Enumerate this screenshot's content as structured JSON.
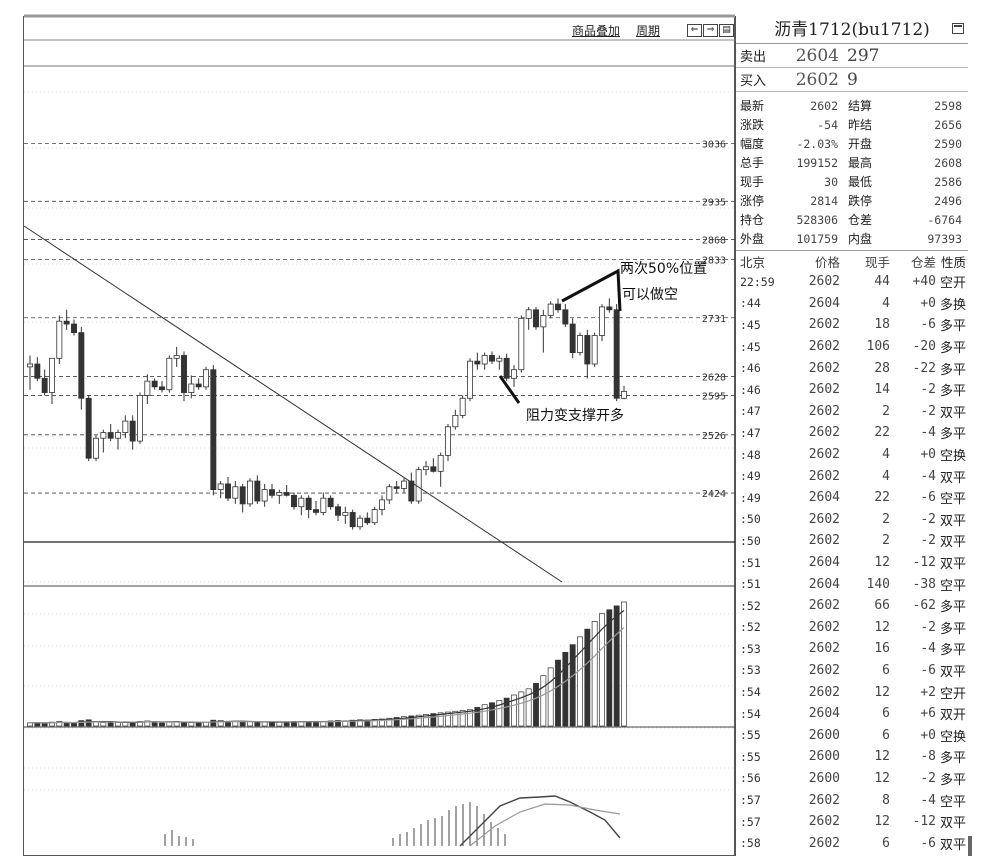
{
  "toolbar": {
    "overlay_label": "商品叠加",
    "period_label": "周期",
    "buttons": [
      "zoom-in-icon",
      "zoom-out-icon",
      "layout-icon"
    ]
  },
  "annotations": {
    "retrace_text_1": "两次50%位置",
    "retrace_text_2": "可以做空",
    "support_text": "阻力变支撑开多"
  },
  "price_levels": [
    {
      "label": "3036",
      "value": 3036
    },
    {
      "label": "2935",
      "value": 2935
    },
    {
      "label": "2868",
      "value": 2868
    },
    {
      "label": "2833",
      "value": 2833
    },
    {
      "label": "2731",
      "value": 2731
    },
    {
      "label": "2628",
      "value": 2628
    },
    {
      "label": "2595",
      "value": 2595
    },
    {
      "label": "2526",
      "value": 2526
    },
    {
      "label": "2424",
      "value": 2424
    }
  ],
  "quote": {
    "title": "沥青1712(bu1712)",
    "ask_label": "卖出",
    "ask_price": "2604",
    "ask_vol": "297",
    "bid_label": "买入",
    "bid_price": "2602",
    "bid_vol": "9",
    "stats": [
      {
        "l1": "最新",
        "v1": "2602",
        "l2": "结算",
        "v2": "2598"
      },
      {
        "l1": "涨跌",
        "v1": "-54",
        "l2": "昨结",
        "v2": "2656"
      },
      {
        "l1": "幅度",
        "v1": "-2.03%",
        "l2": "开盘",
        "v2": "2590"
      },
      {
        "l1": "总手",
        "v1": "199152",
        "l2": "最高",
        "v2": "2608"
      },
      {
        "l1": "现手",
        "v1": "30",
        "l2": "最低",
        "v2": "2586"
      },
      {
        "l1": "涨停",
        "v1": "2814",
        "l2": "跌停",
        "v2": "2496"
      },
      {
        "l1": "持仓",
        "v1": "528306",
        "l2": "仓差",
        "v2": "-6764"
      },
      {
        "l1": "外盘",
        "v1": "101759",
        "l2": "内盘",
        "v2": "97393"
      }
    ]
  },
  "ticks": {
    "header": {
      "time": "北京",
      "price": "价格",
      "vol": "现手",
      "oi": "仓差",
      "nature": "性质"
    },
    "rows": [
      {
        "t": "22:59",
        "p": "2602",
        "v": "44",
        "oi": "+40",
        "n": "空开"
      },
      {
        "t": ":44",
        "p": "2604",
        "v": "4",
        "oi": "+0",
        "n": "多换"
      },
      {
        "t": ":45",
        "p": "2602",
        "v": "18",
        "oi": "-6",
        "n": "多平"
      },
      {
        "t": ":45",
        "p": "2602",
        "v": "106",
        "oi": "-20",
        "n": "多平"
      },
      {
        "t": ":46",
        "p": "2602",
        "v": "28",
        "oi": "-22",
        "n": "多平"
      },
      {
        "t": ":46",
        "p": "2602",
        "v": "14",
        "oi": "-2",
        "n": "多平"
      },
      {
        "t": ":47",
        "p": "2602",
        "v": "2",
        "oi": "-2",
        "n": "双平"
      },
      {
        "t": ":47",
        "p": "2602",
        "v": "22",
        "oi": "-4",
        "n": "多平"
      },
      {
        "t": ":48",
        "p": "2602",
        "v": "4",
        "oi": "+0",
        "n": "空换"
      },
      {
        "t": ":49",
        "p": "2602",
        "v": "4",
        "oi": "-4",
        "n": "双平"
      },
      {
        "t": ":49",
        "p": "2604",
        "v": "22",
        "oi": "-6",
        "n": "空平"
      },
      {
        "t": ":50",
        "p": "2602",
        "v": "2",
        "oi": "-2",
        "n": "双平"
      },
      {
        "t": ":50",
        "p": "2602",
        "v": "2",
        "oi": "-2",
        "n": "双平"
      },
      {
        "t": ":51",
        "p": "2604",
        "v": "12",
        "oi": "-12",
        "n": "双平"
      },
      {
        "t": ":51",
        "p": "2604",
        "v": "140",
        "oi": "-38",
        "n": "空平"
      },
      {
        "t": ":52",
        "p": "2602",
        "v": "66",
        "oi": "-62",
        "n": "多平"
      },
      {
        "t": ":52",
        "p": "2602",
        "v": "12",
        "oi": "-2",
        "n": "多平"
      },
      {
        "t": ":53",
        "p": "2602",
        "v": "16",
        "oi": "-4",
        "n": "多平"
      },
      {
        "t": ":53",
        "p": "2602",
        "v": "6",
        "oi": "-6",
        "n": "双平"
      },
      {
        "t": ":54",
        "p": "2602",
        "v": "12",
        "oi": "+2",
        "n": "空开"
      },
      {
        "t": ":54",
        "p": "2604",
        "v": "6",
        "oi": "+6",
        "n": "双开"
      },
      {
        "t": ":55",
        "p": "2600",
        "v": "6",
        "oi": "+0",
        "n": "空换"
      },
      {
        "t": ":55",
        "p": "2600",
        "v": "12",
        "oi": "-8",
        "n": "多平"
      },
      {
        "t": ":56",
        "p": "2600",
        "v": "12",
        "oi": "-2",
        "n": "多平"
      },
      {
        "t": ":57",
        "p": "2602",
        "v": "8",
        "oi": "-4",
        "n": "空平"
      },
      {
        "t": ":57",
        "p": "2602",
        "v": "12",
        "oi": "-12",
        "n": "双平"
      },
      {
        "t": ":58",
        "p": "2602",
        "v": "6",
        "oi": "-6",
        "n": "双平"
      }
    ]
  },
  "chart_data": {
    "type": "candlestick",
    "candles": [
      {
        "o": 2645,
        "h": 2665,
        "l": 2605,
        "c": 2650
      },
      {
        "o": 2650,
        "h": 2662,
        "l": 2620,
        "c": 2625
      },
      {
        "o": 2625,
        "h": 2640,
        "l": 2595,
        "c": 2600
      },
      {
        "o": 2600,
        "h": 2660,
        "l": 2580,
        "c": 2660
      },
      {
        "o": 2660,
        "h": 2735,
        "l": 2650,
        "c": 2725
      },
      {
        "o": 2725,
        "h": 2745,
        "l": 2710,
        "c": 2720
      },
      {
        "o": 2720,
        "h": 2728,
        "l": 2700,
        "c": 2705
      },
      {
        "o": 2705,
        "h": 2715,
        "l": 2570,
        "c": 2590
      },
      {
        "o": 2590,
        "h": 2595,
        "l": 2480,
        "c": 2485
      },
      {
        "o": 2485,
        "h": 2525,
        "l": 2480,
        "c": 2520
      },
      {
        "o": 2520,
        "h": 2535,
        "l": 2495,
        "c": 2530
      },
      {
        "o": 2530,
        "h": 2545,
        "l": 2515,
        "c": 2520
      },
      {
        "o": 2520,
        "h": 2535,
        "l": 2500,
        "c": 2530
      },
      {
        "o": 2530,
        "h": 2560,
        "l": 2520,
        "c": 2550
      },
      {
        "o": 2550,
        "h": 2560,
        "l": 2500,
        "c": 2515
      },
      {
        "o": 2515,
        "h": 2600,
        "l": 2510,
        "c": 2595
      },
      {
        "o": 2595,
        "h": 2632,
        "l": 2580,
        "c": 2620
      },
      {
        "o": 2620,
        "h": 2625,
        "l": 2605,
        "c": 2610
      },
      {
        "o": 2610,
        "h": 2620,
        "l": 2600,
        "c": 2605
      },
      {
        "o": 2605,
        "h": 2665,
        "l": 2600,
        "c": 2660
      },
      {
        "o": 2660,
        "h": 2680,
        "l": 2645,
        "c": 2665
      },
      {
        "o": 2665,
        "h": 2672,
        "l": 2585,
        "c": 2600
      },
      {
        "o": 2600,
        "h": 2630,
        "l": 2590,
        "c": 2615
      },
      {
        "o": 2615,
        "h": 2625,
        "l": 2605,
        "c": 2610
      },
      {
        "o": 2610,
        "h": 2645,
        "l": 2605,
        "c": 2640
      },
      {
        "o": 2640,
        "h": 2648,
        "l": 2420,
        "c": 2430
      },
      {
        "o": 2430,
        "h": 2445,
        "l": 2415,
        "c": 2440
      },
      {
        "o": 2440,
        "h": 2452,
        "l": 2410,
        "c": 2415
      },
      {
        "o": 2415,
        "h": 2445,
        "l": 2405,
        "c": 2435
      },
      {
        "o": 2435,
        "h": 2440,
        "l": 2390,
        "c": 2405
      },
      {
        "o": 2405,
        "h": 2450,
        "l": 2400,
        "c": 2445
      },
      {
        "o": 2445,
        "h": 2455,
        "l": 2405,
        "c": 2410
      },
      {
        "o": 2410,
        "h": 2440,
        "l": 2400,
        "c": 2430
      },
      {
        "o": 2430,
        "h": 2440,
        "l": 2415,
        "c": 2420
      },
      {
        "o": 2420,
        "h": 2430,
        "l": 2405,
        "c": 2425
      },
      {
        "o": 2425,
        "h": 2438,
        "l": 2418,
        "c": 2420
      },
      {
        "o": 2420,
        "h": 2425,
        "l": 2395,
        "c": 2400
      },
      {
        "o": 2400,
        "h": 2420,
        "l": 2385,
        "c": 2415
      },
      {
        "o": 2415,
        "h": 2420,
        "l": 2380,
        "c": 2395
      },
      {
        "o": 2395,
        "h": 2410,
        "l": 2385,
        "c": 2390
      },
      {
        "o": 2390,
        "h": 2425,
        "l": 2385,
        "c": 2415
      },
      {
        "o": 2415,
        "h": 2420,
        "l": 2395,
        "c": 2400
      },
      {
        "o": 2400,
        "h": 2405,
        "l": 2375,
        "c": 2385
      },
      {
        "o": 2385,
        "h": 2400,
        "l": 2370,
        "c": 2390
      },
      {
        "o": 2390,
        "h": 2395,
        "l": 2360,
        "c": 2365
      },
      {
        "o": 2365,
        "h": 2385,
        "l": 2360,
        "c": 2380
      },
      {
        "o": 2380,
        "h": 2390,
        "l": 2368,
        "c": 2372
      },
      {
        "o": 2372,
        "h": 2400,
        "l": 2368,
        "c": 2395
      },
      {
        "o": 2395,
        "h": 2420,
        "l": 2385,
        "c": 2412
      },
      {
        "o": 2412,
        "h": 2440,
        "l": 2405,
        "c": 2435
      },
      {
        "o": 2435,
        "h": 2445,
        "l": 2425,
        "c": 2432
      },
      {
        "o": 2432,
        "h": 2450,
        "l": 2425,
        "c": 2445
      },
      {
        "o": 2445,
        "h": 2460,
        "l": 2405,
        "c": 2410
      },
      {
        "o": 2410,
        "h": 2470,
        "l": 2405,
        "c": 2465
      },
      {
        "o": 2465,
        "h": 2480,
        "l": 2455,
        "c": 2470
      },
      {
        "o": 2470,
        "h": 2485,
        "l": 2460,
        "c": 2462
      },
      {
        "o": 2462,
        "h": 2495,
        "l": 2435,
        "c": 2490
      },
      {
        "o": 2490,
        "h": 2545,
        "l": 2480,
        "c": 2540
      },
      {
        "o": 2540,
        "h": 2570,
        "l": 2535,
        "c": 2560
      },
      {
        "o": 2560,
        "h": 2595,
        "l": 2555,
        "c": 2590
      },
      {
        "o": 2590,
        "h": 2660,
        "l": 2585,
        "c": 2655
      },
      {
        "o": 2655,
        "h": 2670,
        "l": 2640,
        "c": 2650
      },
      {
        "o": 2650,
        "h": 2670,
        "l": 2640,
        "c": 2665
      },
      {
        "o": 2665,
        "h": 2672,
        "l": 2650,
        "c": 2655
      },
      {
        "o": 2655,
        "h": 2665,
        "l": 2640,
        "c": 2660
      },
      {
        "o": 2660,
        "h": 2668,
        "l": 2620,
        "c": 2625
      },
      {
        "o": 2625,
        "h": 2648,
        "l": 2610,
        "c": 2640
      },
      {
        "o": 2640,
        "h": 2735,
        "l": 2635,
        "c": 2730
      },
      {
        "o": 2730,
        "h": 2750,
        "l": 2710,
        "c": 2745
      },
      {
        "o": 2745,
        "h": 2750,
        "l": 2710,
        "c": 2715
      },
      {
        "o": 2715,
        "h": 2745,
        "l": 2670,
        "c": 2735
      },
      {
        "o": 2735,
        "h": 2760,
        "l": 2730,
        "c": 2755
      },
      {
        "o": 2755,
        "h": 2765,
        "l": 2740,
        "c": 2745
      },
      {
        "o": 2745,
        "h": 2755,
        "l": 2715,
        "c": 2720
      },
      {
        "o": 2720,
        "h": 2730,
        "l": 2660,
        "c": 2670
      },
      {
        "o": 2670,
        "h": 2705,
        "l": 2665,
        "c": 2700
      },
      {
        "o": 2700,
        "h": 2710,
        "l": 2625,
        "c": 2650
      },
      {
        "o": 2650,
        "h": 2705,
        "l": 2645,
        "c": 2700
      },
      {
        "o": 2700,
        "h": 2755,
        "l": 2690,
        "c": 2750
      },
      {
        "o": 2750,
        "h": 2765,
        "l": 2740,
        "c": 2745
      },
      {
        "o": 2745,
        "h": 2755,
        "l": 2585,
        "c": 2590
      },
      {
        "o": 2590,
        "h": 2612,
        "l": 2588,
        "c": 2602
      }
    ],
    "volume": [
      8,
      9,
      7,
      10,
      12,
      8,
      7,
      14,
      16,
      10,
      9,
      8,
      9,
      11,
      10,
      12,
      13,
      9,
      8,
      11,
      12,
      10,
      9,
      8,
      10,
      15,
      14,
      12,
      11,
      10,
      12,
      11,
      10,
      9,
      10,
      11,
      12,
      12,
      11,
      10,
      12,
      13,
      14,
      13,
      15,
      16,
      15,
      17,
      18,
      20,
      22,
      24,
      26,
      28,
      30,
      32,
      34,
      36,
      38,
      40,
      42,
      48,
      55,
      60,
      66,
      72,
      80,
      88,
      96,
      110,
      130,
      150,
      170,
      190,
      210,
      230,
      250,
      270,
      290,
      300,
      310,
      320
    ],
    "macd": [
      0,
      0,
      0,
      0,
      0,
      0,
      0,
      0,
      0,
      0,
      0,
      0,
      0,
      0,
      0,
      0,
      0,
      0,
      0,
      0,
      0,
      0,
      0,
      0,
      0,
      0,
      0,
      0,
      0,
      0,
      0,
      0,
      0,
      0,
      0,
      0,
      0,
      0,
      0,
      0,
      0,
      0,
      0,
      0,
      0,
      0,
      0,
      0,
      0,
      0,
      0,
      0,
      0,
      0,
      0,
      0,
      0,
      0,
      0,
      0,
      0,
      0,
      0,
      0,
      0,
      0,
      0,
      0,
      0,
      0,
      0,
      0,
      0,
      0,
      0,
      0,
      0,
      0,
      0,
      0,
      0,
      0
    ]
  }
}
